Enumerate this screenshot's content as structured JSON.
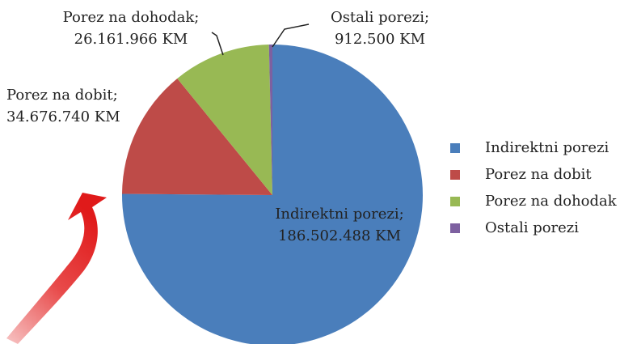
{
  "chart_data": {
    "type": "pie",
    "categories": [
      "Indirektni porezi",
      "Porez na dobit",
      "Porez na dohodak",
      "Ostali porezi"
    ],
    "values": [
      186502488,
      34676740,
      26161966,
      912500
    ],
    "label_titles": [
      "Indirektni porezi;",
      "Porez na dobit;",
      "Porez na dohodak;",
      "Ostali porezi;"
    ],
    "value_labels": [
      "186.502.488 KM",
      "34.676.740 KM",
      "26.161.966 KM",
      "912.500 KM"
    ],
    "colors": [
      "#4a7ebb",
      "#be4b48",
      "#98b954",
      "#7d60a0"
    ],
    "legend": "right"
  }
}
